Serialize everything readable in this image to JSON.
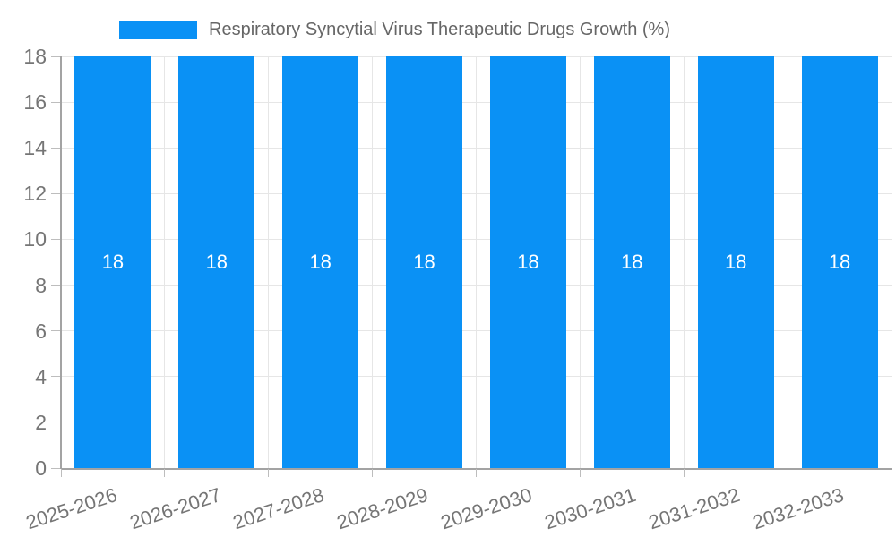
{
  "legend": {
    "label": "Respiratory Syncytial Virus Therapeutic Drugs Growth (%)"
  },
  "chart_data": {
    "type": "bar",
    "title": "Respiratory Syncytial Virus Therapeutic Drugs Growth (%)",
    "categories": [
      "2025-2026",
      "2026-2027",
      "2027-2028",
      "2028-2029",
      "2029-2030",
      "2030-2031",
      "2031-2032",
      "2032-2033"
    ],
    "values": [
      18,
      18,
      18,
      18,
      18,
      18,
      18,
      18
    ],
    "value_labels": [
      "18",
      "18",
      "18",
      "18",
      "18",
      "18",
      "18",
      "18"
    ],
    "xlabel": "",
    "ylabel": "",
    "ylim": [
      0,
      18
    ],
    "ytick_step": 2,
    "ytick_labels": [
      "0",
      "2",
      "4",
      "6",
      "8",
      "10",
      "12",
      "14",
      "16",
      "18"
    ],
    "grid": "on",
    "legend_position": "top",
    "colors": {
      "bar": "#0a91f5",
      "grid": "#e6e6e6",
      "axis": "#a3a3a3",
      "tick": "#bdbdbd",
      "axis_label": "#757575",
      "legend_text": "#666666",
      "value_label": "#ffffff"
    }
  }
}
